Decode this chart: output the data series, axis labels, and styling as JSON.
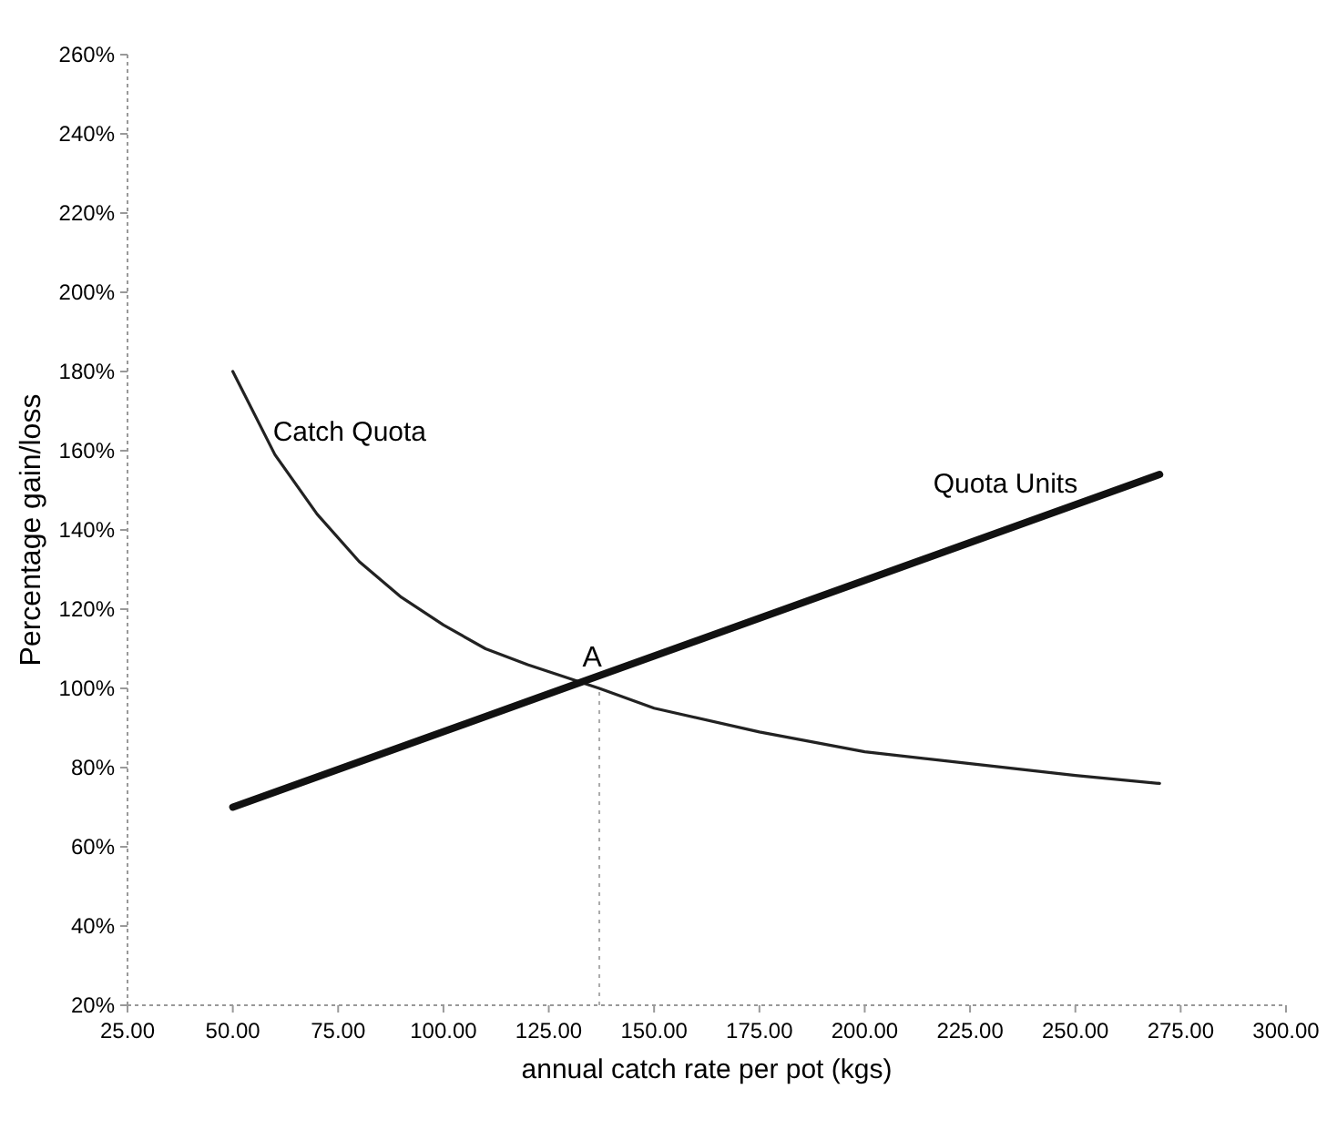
{
  "chart_data": {
    "type": "line",
    "xlabel": "annual catch rate per pot (kgs)",
    "ylabel": "Percentage gain/loss",
    "xlim": [
      25,
      300
    ],
    "xticks": [
      {
        "value": 25,
        "label": "25.00"
      },
      {
        "value": 50,
        "label": "50.00"
      },
      {
        "value": 75,
        "label": "75.00"
      },
      {
        "value": 100,
        "label": "100.00"
      },
      {
        "value": 125,
        "label": "125.00"
      },
      {
        "value": 150,
        "label": "150.00"
      },
      {
        "value": 175,
        "label": "175.00"
      },
      {
        "value": 200,
        "label": "200.00"
      },
      {
        "value": 225,
        "label": "225.00"
      },
      {
        "value": 250,
        "label": "250.00"
      },
      {
        "value": 275,
        "label": "275.00"
      },
      {
        "value": 300,
        "label": "300.00"
      }
    ],
    "ylim": [
      20,
      260
    ],
    "yticks": [
      {
        "value": 20,
        "label": "20%"
      },
      {
        "value": 40,
        "label": "40%"
      },
      {
        "value": 60,
        "label": "60%"
      },
      {
        "value": 80,
        "label": "80%"
      },
      {
        "value": 100,
        "label": "100%"
      },
      {
        "value": 120,
        "label": "120%"
      },
      {
        "value": 140,
        "label": "140%"
      },
      {
        "value": 160,
        "label": "160%"
      },
      {
        "value": 180,
        "label": "180%"
      },
      {
        "value": 200,
        "label": "200%"
      },
      {
        "value": 220,
        "label": "220%"
      },
      {
        "value": 240,
        "label": "240%"
      },
      {
        "value": 260,
        "label": "260%"
      }
    ],
    "series": [
      {
        "name": "Catch Quota",
        "color": "#222222",
        "x": [
          50,
          60,
          70,
          80,
          90,
          100,
          110,
          120,
          137,
          150,
          175,
          200,
          225,
          250,
          270
        ],
        "values": [
          180,
          159,
          144,
          132,
          123,
          116,
          110,
          106,
          100,
          95,
          89,
          84,
          81,
          78,
          76
        ]
      },
      {
        "name": "Quota Units",
        "color": "#111111",
        "x": [
          50,
          270
        ],
        "values": [
          70,
          154
        ]
      }
    ],
    "annotations": [
      {
        "text": "A",
        "x": 137,
        "y": 100
      }
    ],
    "ref_lines": [
      {
        "axis": "x",
        "value": 137
      }
    ],
    "grid": false
  }
}
